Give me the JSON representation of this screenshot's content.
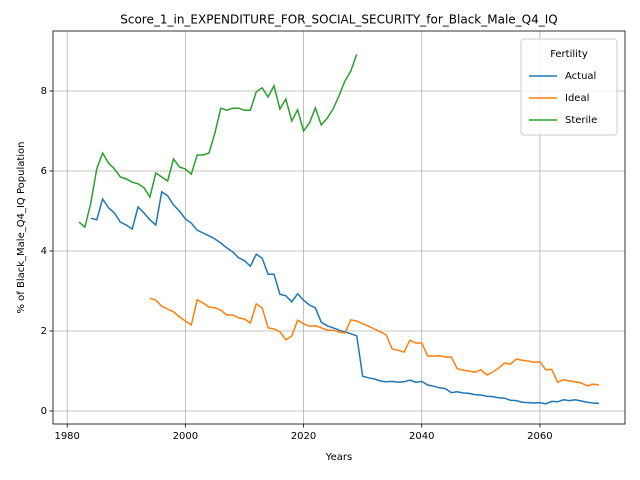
{
  "chart_data": {
    "type": "line",
    "title": "Score_1_in_EXPENDITURE_FOR_SOCIAL_SECURITY_for_Black_Male_Q4_IQ",
    "xlabel": "Years",
    "ylabel": "% of Black_Male_Q4_IQ Population",
    "legend_title": "Fertility",
    "legend": "upper right",
    "grid": true,
    "xlim": [
      1977.6,
      2074.4
    ],
    "xticks": [
      1980,
      2000,
      2020,
      2040,
      2060
    ],
    "ylim": [
      -0.325,
      9.5
    ],
    "yticks": [
      0,
      2,
      4,
      6,
      8
    ],
    "x": [
      1982,
      1983,
      1984,
      1985,
      1986,
      1987,
      1988,
      1989,
      1990,
      1991,
      1992,
      1993,
      1994,
      1995,
      1996,
      1997,
      1998,
      1999,
      2000,
      2001,
      2002,
      2003,
      2004,
      2005,
      2006,
      2007,
      2008,
      2009,
      2010,
      2011,
      2012,
      2013,
      2014,
      2015,
      2016,
      2017,
      2018,
      2019,
      2020,
      2021,
      2022,
      2023,
      2024,
      2025,
      2026,
      2027,
      2028,
      2029,
      2030,
      2031,
      2032,
      2033,
      2034,
      2035,
      2036,
      2037,
      2038,
      2039,
      2040,
      2041,
      2042,
      2043,
      2044,
      2045,
      2046,
      2047,
      2048,
      2049,
      2050,
      2051,
      2052,
      2053,
      2054,
      2055,
      2056,
      2057,
      2058,
      2059,
      2060,
      2061,
      2062,
      2063,
      2064,
      2065,
      2066,
      2067,
      2068,
      2069,
      2070
    ],
    "series": [
      {
        "name": "Actual",
        "color": "#1f77b4",
        "values": [
          null,
          null,
          4.82,
          4.78,
          5.3,
          5.08,
          4.95,
          4.72,
          4.65,
          4.55,
          5.1,
          4.95,
          4.78,
          4.65,
          5.48,
          5.38,
          5.15,
          5.0,
          4.8,
          4.7,
          4.52,
          4.45,
          4.38,
          4.3,
          4.2,
          4.08,
          3.98,
          3.83,
          3.76,
          3.62,
          3.92,
          3.82,
          3.42,
          3.42,
          2.92,
          2.88,
          2.73,
          2.93,
          2.77,
          2.65,
          2.58,
          2.22,
          2.13,
          2.08,
          2.02,
          1.98,
          1.93,
          1.88,
          0.87,
          0.83,
          0.8,
          0.75,
          0.73,
          0.74,
          0.72,
          0.73,
          0.77,
          0.72,
          0.74,
          0.65,
          0.62,
          0.58,
          0.56,
          0.46,
          0.48,
          0.45,
          0.44,
          0.41,
          0.4,
          0.37,
          0.36,
          0.33,
          0.32,
          0.27,
          0.26,
          0.22,
          0.21,
          0.2,
          0.21,
          0.18,
          0.24,
          0.23,
          0.28,
          0.26,
          0.28,
          0.25,
          0.22,
          0.2,
          0.19
        ]
      },
      {
        "name": "Ideal",
        "color": "#ff7f0e",
        "values": [
          null,
          null,
          null,
          null,
          null,
          null,
          null,
          null,
          null,
          null,
          null,
          null,
          2.82,
          2.77,
          2.62,
          2.55,
          2.48,
          2.35,
          2.25,
          2.15,
          2.78,
          2.7,
          2.6,
          2.58,
          2.52,
          2.4,
          2.4,
          2.33,
          2.3,
          2.2,
          2.68,
          2.58,
          2.08,
          2.05,
          1.98,
          1.78,
          1.87,
          2.27,
          2.18,
          2.12,
          2.13,
          2.08,
          2.02,
          2.02,
          1.97,
          1.95,
          2.28,
          2.25,
          2.18,
          2.12,
          2.05,
          1.98,
          1.9,
          1.55,
          1.52,
          1.47,
          1.77,
          1.7,
          1.7,
          1.38,
          1.37,
          1.38,
          1.35,
          1.35,
          1.06,
          1.02,
          1.0,
          0.97,
          1.03,
          0.9,
          0.97,
          1.07,
          1.2,
          1.17,
          1.3,
          1.27,
          1.25,
          1.22,
          1.23,
          1.03,
          1.04,
          0.72,
          0.78,
          0.75,
          0.73,
          0.7,
          0.63,
          0.67,
          0.65
        ]
      },
      {
        "name": "Sterile",
        "color": "#2ca02c",
        "values": [
          4.72,
          4.6,
          5.2,
          6.05,
          6.45,
          6.2,
          6.05,
          5.85,
          5.8,
          5.72,
          5.68,
          5.58,
          5.35,
          5.95,
          5.85,
          5.75,
          6.3,
          6.1,
          6.05,
          5.92,
          6.4,
          6.4,
          6.45,
          6.95,
          7.57,
          7.52,
          7.57,
          7.57,
          7.52,
          7.52,
          7.98,
          8.08,
          7.85,
          8.13,
          7.55,
          7.8,
          7.25,
          7.53,
          7.0,
          7.2,
          7.58,
          7.15,
          7.32,
          7.55,
          7.88,
          8.25,
          8.5,
          8.92,
          null,
          null,
          null,
          null,
          null,
          null,
          null,
          null,
          null,
          null,
          null,
          null,
          null,
          null,
          null,
          null,
          null,
          null,
          null,
          null,
          null,
          null,
          null,
          null,
          null,
          null,
          null,
          null,
          null,
          null,
          null,
          null,
          null,
          null,
          null,
          null,
          null,
          null,
          null,
          null,
          null
        ]
      }
    ]
  }
}
